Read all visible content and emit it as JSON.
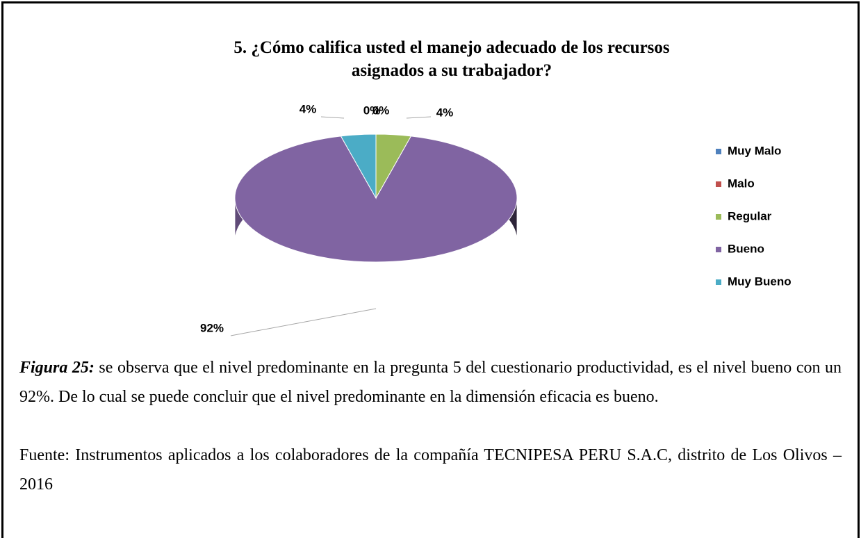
{
  "chart_data": {
    "type": "pie",
    "title": "5. ¿Cómo califica usted el manejo adecuado de los recursos asignados a su trabajador?",
    "categories": [
      "Muy Malo",
      "Malo",
      "Regular",
      "Bueno",
      "Muy Bueno"
    ],
    "values": [
      0,
      0,
      4,
      92,
      4
    ],
    "value_labels": [
      "0%",
      "0%",
      "4%",
      "92%",
      "4%"
    ],
    "colors": [
      "#4f81bd",
      "#c0504d",
      "#9bbb59",
      "#8064a2",
      "#4bacc6"
    ],
    "legend": "right"
  },
  "caption": {
    "label": "Figura 25:",
    "text": " se observa que el nivel predominante en la pregunta 5 del cuestionario productividad, es el nivel bueno con un 92%. De lo cual se puede concluir que el nivel predominante en la dimensión eficacia es bueno."
  },
  "source": "Fuente: Instrumentos aplicados a los colaboradores de la compañía TECNIPESA PERU S.A.C, distrito de Los Olivos – 2016"
}
